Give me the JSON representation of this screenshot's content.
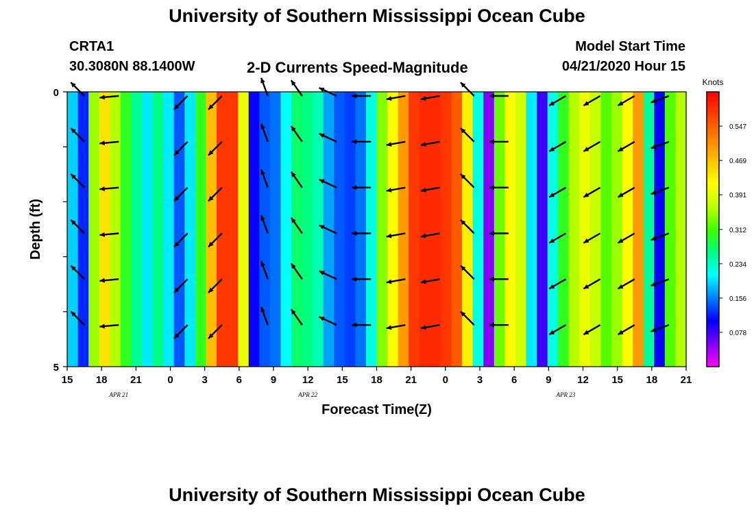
{
  "title": "University of Southern Mississippi Ocean Cube",
  "footer_title": "University of Southern Mississippi Ocean Cube",
  "station": {
    "name": "CRTA1",
    "coords": "30.3080N 88.1400W"
  },
  "subtitle": "2-D Currents Speed-Magnitude",
  "model_start": {
    "label": "Model Start Time",
    "value": "04/21/2020 Hour 15"
  },
  "chart_data": {
    "type": "heatmap",
    "title": "2-D Currents Speed-Magnitude",
    "xlabel": "Forecast Time(Z)",
    "ylabel": "Depth (ft)",
    "ylim": [
      0,
      5
    ],
    "y_ticks": [
      "0",
      "5"
    ],
    "x_range_hours": [
      0,
      54
    ],
    "x_ticks": [
      {
        "h": 0,
        "label": "15"
      },
      {
        "h": 3,
        "label": "18"
      },
      {
        "h": 6,
        "label": "21"
      },
      {
        "h": 9,
        "label": "0"
      },
      {
        "h": 12,
        "label": "3"
      },
      {
        "h": 15,
        "label": "6"
      },
      {
        "h": 18,
        "label": "9"
      },
      {
        "h": 21,
        "label": "12"
      },
      {
        "h": 24,
        "label": "15"
      },
      {
        "h": 27,
        "label": "18"
      },
      {
        "h": 30,
        "label": "21"
      },
      {
        "h": 33,
        "label": "0"
      },
      {
        "h": 36,
        "label": "3"
      },
      {
        "h": 39,
        "label": "6"
      },
      {
        "h": 42,
        "label": "9"
      },
      {
        "h": 45,
        "label": "12"
      },
      {
        "h": 48,
        "label": "15"
      },
      {
        "h": 51,
        "label": "18"
      },
      {
        "h": 54,
        "label": "21"
      }
    ],
    "date_labels": [
      {
        "h": 4.5,
        "label": "APR 21"
      },
      {
        "h": 21,
        "label": "APR 22"
      },
      {
        "h": 43.5,
        "label": "APR 23"
      }
    ],
    "colorbar": {
      "label": "Knots",
      "ticks": [
        "0.078",
        "0.156",
        "0.234",
        "0.312",
        "0.391",
        "0.469",
        "0.547"
      ],
      "colors": [
        "#ff00ff",
        "#8000ff",
        "#0000ff",
        "#0080ff",
        "#00ffff",
        "#00ff80",
        "#40ff00",
        "#c0ff00",
        "#ffff00",
        "#ffc000",
        "#ff8000",
        "#ff4000",
        "#ff0000"
      ]
    },
    "speed_columns": [
      0.19,
      0.12,
      0.35,
      0.44,
      0.36,
      0.3,
      0.25,
      0.2,
      0.26,
      0.2,
      0.14,
      0.2,
      0.3,
      0.47,
      0.58,
      0.58,
      0.4,
      0.1,
      0.14,
      0.15,
      0.21,
      0.27,
      0.26,
      0.24,
      0.17,
      0.14,
      0.13,
      0.15,
      0.22,
      0.34,
      0.42,
      0.5,
      0.58,
      0.59,
      0.59,
      0.58,
      0.55,
      0.43,
      0.22,
      0.05,
      0.33,
      0.42,
      0.38,
      0.2,
      0.08,
      0.22,
      0.3,
      0.36,
      0.4,
      0.37,
      0.32,
      0.35,
      0.42,
      0.5,
      0.25,
      0.1,
      0.32,
      0.36
    ],
    "arrow_columns": [
      {
        "h": 1.5,
        "deg": 225
      },
      {
        "h": 4.5,
        "deg": 175
      },
      {
        "h": 10.5,
        "deg": 135
      },
      {
        "h": 13.5,
        "deg": 135
      },
      {
        "h": 17.5,
        "deg": 250
      },
      {
        "h": 20.5,
        "deg": 235
      },
      {
        "h": 23.5,
        "deg": 205
      },
      {
        "h": 26.5,
        "deg": 180
      },
      {
        "h": 29.5,
        "deg": 170
      },
      {
        "h": 32.5,
        "deg": 170
      },
      {
        "h": 35.5,
        "deg": 225
      },
      {
        "h": 38.5,
        "deg": 180
      },
      {
        "h": 43.5,
        "deg": 150
      },
      {
        "h": 46.5,
        "deg": 150
      },
      {
        "h": 49.5,
        "deg": 150
      },
      {
        "h": 52.5,
        "deg": 160
      }
    ]
  }
}
